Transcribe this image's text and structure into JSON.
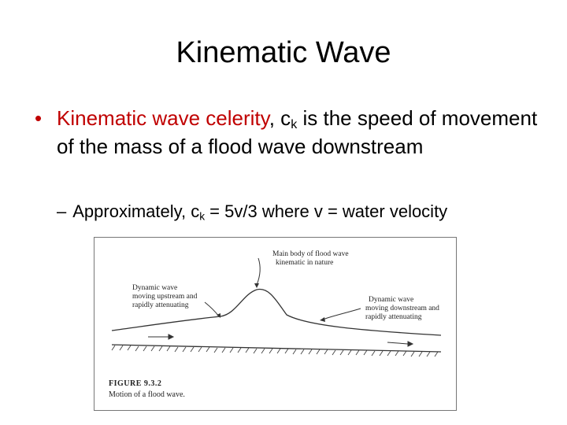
{
  "slide": {
    "title": "Kinematic Wave",
    "bullet1": {
      "marker": "•",
      "term": "Kinematic wave celerity",
      "after_term": ", c",
      "subscript": "k",
      "rest": " is the speed of movement of the mass of a flood wave downstream"
    },
    "bullet2": {
      "marker": "–",
      "prefix": "Approximately, c",
      "subscript": "k",
      "rest": " = 5v/3 where v = water velocity"
    }
  },
  "figure": {
    "label_main": [
      "Main body of flood wave",
      "kinematic in nature"
    ],
    "label_up": [
      "Dynamic wave",
      "moving upstream and",
      "rapidly attenuating"
    ],
    "label_down": [
      "Dynamic wave",
      "moving downstream and",
      "rapidly attenuating"
    ],
    "caption_title": "FIGURE 9.3.2",
    "caption_text": "Motion of a flood wave."
  },
  "colors": {
    "accent": "#c00000",
    "text": "#000000"
  }
}
